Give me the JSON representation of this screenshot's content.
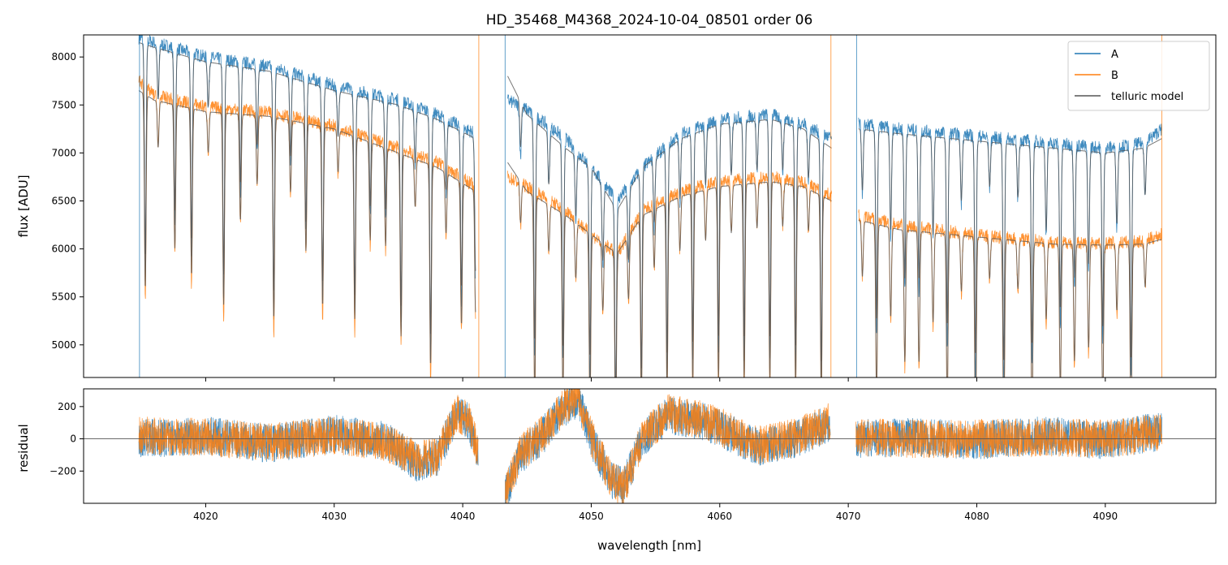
{
  "chart_data": [
    {
      "type": "line",
      "title": "HD_35468_M4368_2024-10-04_08501  order 06",
      "xlabel": "",
      "ylabel": "flux [ADU]",
      "xlim": [
        4010.5,
        4098.6
      ],
      "ylim": [
        4660,
        8230
      ],
      "xticks": [
        4020,
        4030,
        4040,
        4050,
        4060,
        4070,
        4080,
        4090
      ],
      "yticks": [
        5000,
        5500,
        6000,
        6500,
        7000,
        7500,
        8000
      ],
      "grid": false,
      "legend": "top-right",
      "line_dips_x": [
        4015.3,
        4016.3,
        4017.6,
        4018.9,
        4020.2,
        4021.4,
        4022.7,
        4024.0,
        4025.3,
        4026.6,
        4027.8,
        4029.1,
        4030.3,
        4031.6,
        4032.8,
        4034.0,
        4035.2,
        4036.3,
        4037.5,
        4038.7,
        4039.9,
        4041.0,
        4044.5,
        4045.6,
        4046.7,
        4047.8,
        4048.8,
        4049.9,
        4050.9,
        4051.9,
        4052.9,
        4053.9,
        4054.9,
        4055.9,
        4056.9,
        4057.9,
        4058.9,
        4059.9,
        4060.9,
        4061.9,
        4062.9,
        4063.9,
        4064.9,
        4065.9,
        4066.9,
        4067.9,
        4071.1,
        4072.2,
        4073.3,
        4074.4,
        4075.5,
        4076.6,
        4077.7,
        4078.8,
        4079.9,
        4081.0,
        4082.1,
        4083.2,
        4084.3,
        4085.4,
        4086.5,
        4087.6,
        4088.7,
        4089.8,
        4090.9,
        4092.0,
        4093.1
      ],
      "series": [
        {
          "name": "A",
          "color": "#1f77b4",
          "segments": [
            {
              "x": [
                4014.8,
                4016.0,
                4020.0,
                4025.0,
                4030.0,
                4035.0,
                4038.0,
                4041.0
              ],
              "y": [
                8200,
                8150,
                8000,
                7900,
                7700,
                7550,
                7400,
                7200
              ]
            },
            {
              "x": [
                4043.5,
                4045.0,
                4048.0,
                4050.0,
                4052.0,
                4054.0,
                4057.0,
                4060.0,
                4064.0,
                4066.5,
                4068.7
              ],
              "y": [
                7550,
                7450,
                7150,
                6850,
                6500,
                6850,
                7200,
                7350,
                7400,
                7300,
                7150
              ]
            },
            {
              "x": [
                4070.8,
                4074.0,
                4078.0,
                4082.0,
                4086.0,
                4090.0,
                4093.0,
                4094.4
              ],
              "y": [
                7300,
                7250,
                7200,
                7150,
                7100,
                7050,
                7100,
                7250
              ]
            }
          ]
        },
        {
          "name": "B",
          "color": "#ff7f0e",
          "segments": [
            {
              "x": [
                4014.8,
                4016.0,
                4020.0,
                4025.0,
                4030.0,
                4035.0,
                4038.0,
                4041.0
              ],
              "y": [
                7750,
                7600,
                7480,
                7420,
                7280,
                7050,
                6900,
                6650
              ]
            },
            {
              "x": [
                4043.5,
                4045.0,
                4048.0,
                4050.0,
                4052.0,
                4054.0,
                4057.0,
                4060.0,
                4064.0,
                4066.5,
                4068.7
              ],
              "y": [
                6750,
                6650,
                6400,
                6150,
                5950,
                6400,
                6600,
                6700,
                6750,
                6700,
                6550
              ]
            },
            {
              "x": [
                4070.8,
                4074.0,
                4078.0,
                4082.0,
                4086.0,
                4090.0,
                4093.0,
                4094.4
              ],
              "y": [
                6350,
                6250,
                6180,
                6120,
                6070,
                6060,
                6080,
                6150
              ]
            }
          ]
        },
        {
          "name": "telluric model",
          "color": "#555555",
          "segments": [
            {
              "x": [
                4014.8,
                4016.0,
                4020.0,
                4025.0,
                4030.0,
                4035.0,
                4038.0,
                4041.0
              ],
              "y": [
                8150,
                8100,
                7950,
                7850,
                7650,
                7500,
                7350,
                7150
              ]
            },
            {
              "x": [
                4043.5,
                4045.0,
                4048.0,
                4050.0,
                4052.0,
                4054.0,
                4057.0,
                4060.0,
                4064.0,
                4066.5,
                4068.7
              ],
              "y": [
                7800,
                7400,
                7050,
                6850,
                6400,
                6850,
                7150,
                7300,
                7350,
                7250,
                7050
              ]
            },
            {
              "x": [
                4070.8,
                4074.0,
                4078.0,
                4082.0,
                4086.0,
                4090.0,
                4093.0,
                4094.4
              ],
              "y": [
                7250,
                7200,
                7150,
                7100,
                7050,
                7000,
                7050,
                7150
              ]
            },
            {
              "x": [
                4014.8,
                4016.0,
                4020.0,
                4025.0,
                4030.0,
                4035.0,
                4038.0,
                4041.0
              ],
              "y": [
                7650,
                7550,
                7430,
                7380,
                7250,
                7000,
                6850,
                6600
              ]
            },
            {
              "x": [
                4043.5,
                4045.0,
                4048.0,
                4050.0,
                4052.0,
                4054.0,
                4057.0,
                4060.0,
                4064.0,
                4066.5,
                4068.7
              ],
              "y": [
                6900,
                6600,
                6350,
                6150,
                5950,
                6350,
                6550,
                6650,
                6700,
                6650,
                6500
              ]
            },
            {
              "x": [
                4070.8,
                4074.0,
                4078.0,
                4082.0,
                4086.0,
                4090.0,
                4093.0,
                4094.4
              ],
              "y": [
                6300,
                6200,
                6150,
                6100,
                6050,
                6040,
                6050,
                6100
              ]
            }
          ]
        }
      ]
    },
    {
      "type": "line",
      "title": "",
      "xlabel": "wavelength [nm]",
      "ylabel": "residual",
      "xlim": [
        4010.5,
        4098.6
      ],
      "ylim": [
        -400,
        310
      ],
      "xticks": [
        4020,
        4030,
        4040,
        4050,
        4060,
        4070,
        4080,
        4090
      ],
      "yticks": [
        -200,
        0,
        200
      ],
      "grid": false,
      "zero_line": true,
      "series": [
        {
          "name": "A",
          "color": "#1f77b4",
          "segments": [
            {
              "x": [
                4014.8,
                4020.0,
                4025.0,
                4030.0,
                4034.0,
                4036.5,
                4038.0,
                4039.5,
                4040.5,
                4041.2
              ],
              "y": [
                0,
                20,
                -30,
                30,
                -10,
                -150,
                -120,
                150,
                100,
                -100
              ]
            },
            {
              "x": [
                4043.3,
                4044.5,
                4046.0,
                4048.0,
                4049.0,
                4050.0,
                4051.5,
                4052.5,
                4054.0,
                4056.0,
                4059.0,
                4063.0,
                4066.0,
                4068.6
              ],
              "y": [
                -350,
                -100,
                0,
                200,
                250,
                0,
                -250,
                -300,
                0,
                150,
                100,
                -50,
                0,
                100
              ]
            },
            {
              "x": [
                4070.6,
                4075.0,
                4080.0,
                4085.0,
                4090.0,
                4094.4
              ],
              "y": [
                0,
                10,
                -10,
                20,
                -10,
                50
              ]
            }
          ]
        },
        {
          "name": "B",
          "color": "#ff7f0e",
          "segments": [
            {
              "x": [
                4014.8,
                4020.0,
                4025.0,
                4030.0,
                4034.0,
                4036.5,
                4038.0,
                4039.5,
                4040.5,
                4041.2
              ],
              "y": [
                20,
                10,
                -20,
                20,
                -20,
                -130,
                -110,
                160,
                110,
                -80
              ]
            },
            {
              "x": [
                4043.3,
                4044.5,
                4046.0,
                4048.0,
                4049.0,
                4050.0,
                4051.5,
                4052.5,
                4054.0,
                4056.0,
                4059.0,
                4063.0,
                4066.0,
                4068.6
              ],
              "y": [
                -330,
                -90,
                10,
                210,
                260,
                10,
                -240,
                -310,
                10,
                160,
                110,
                -40,
                10,
                110
              ]
            },
            {
              "x": [
                4070.6,
                4075.0,
                4080.0,
                4085.0,
                4090.0,
                4094.4
              ],
              "y": [
                10,
                0,
                0,
                10,
                0,
                40
              ]
            }
          ]
        }
      ]
    }
  ]
}
